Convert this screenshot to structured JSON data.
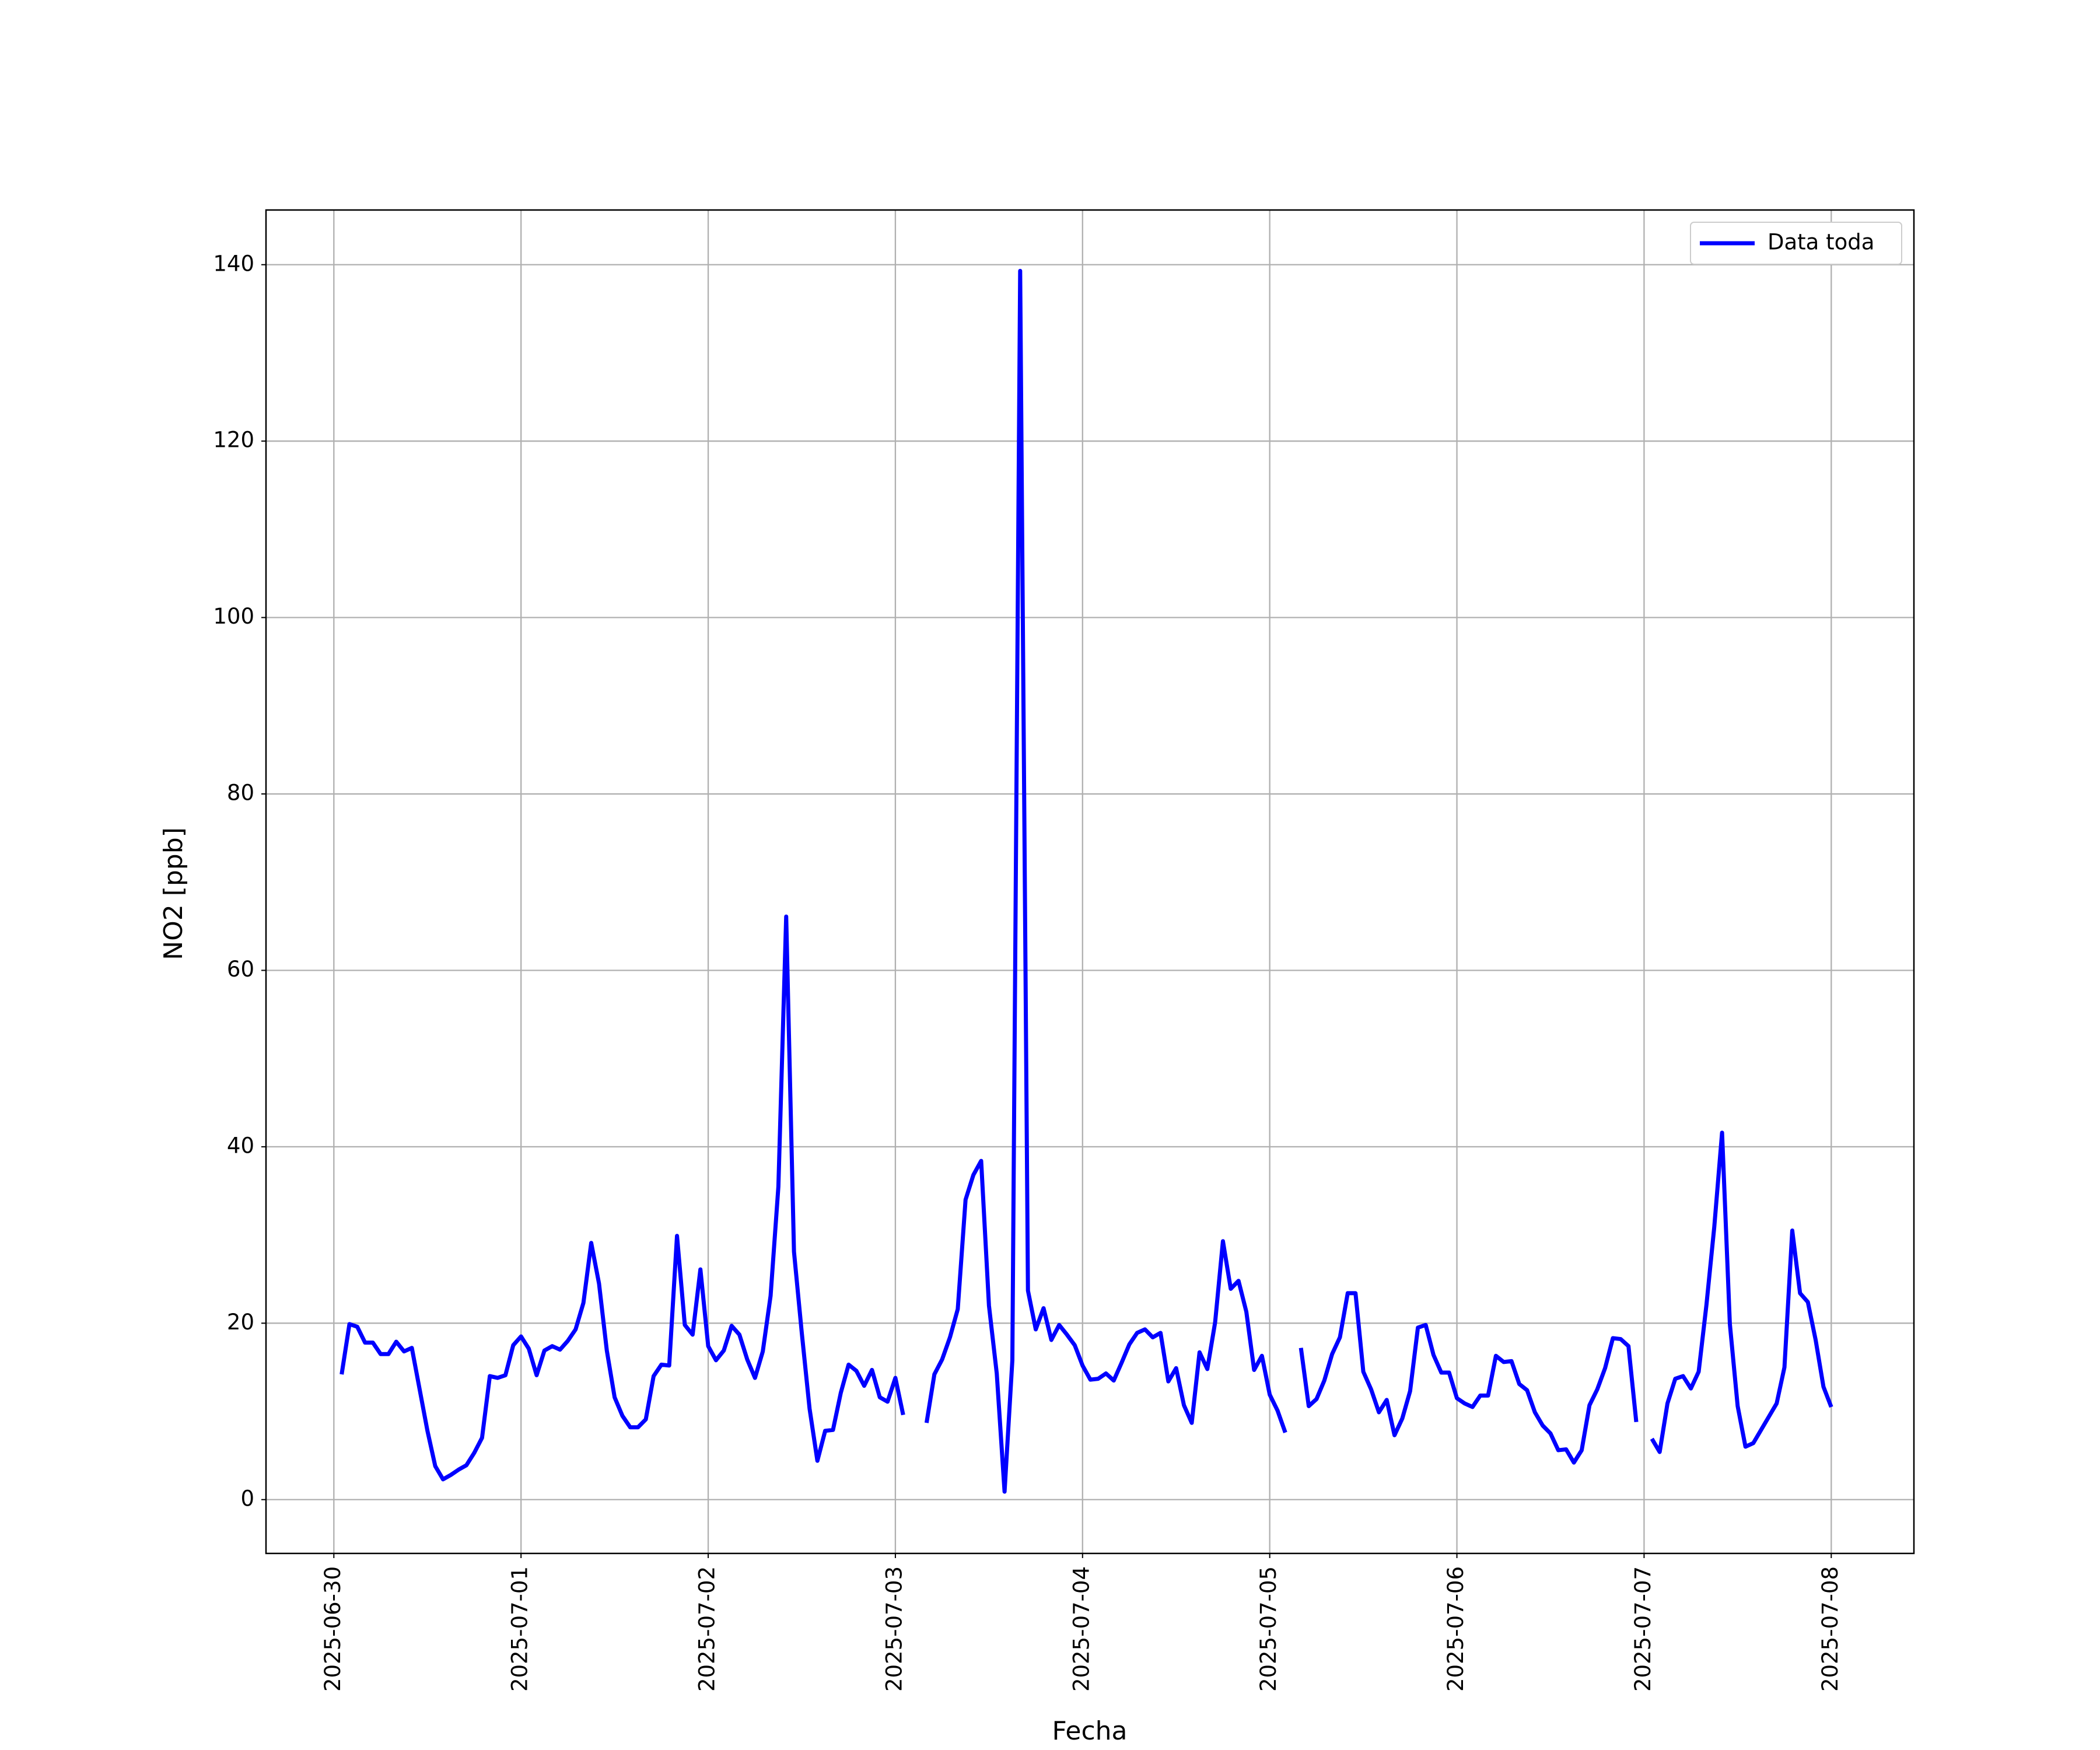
{
  "chart_data": {
    "type": "line",
    "xlabel": "Fecha",
    "ylabel": "NO2 [ppb]",
    "x": [
      1,
      2,
      3,
      4,
      5,
      6,
      7,
      8,
      9,
      10,
      11,
      12,
      13,
      14,
      15,
      16,
      17,
      18,
      19,
      20,
      21,
      22,
      23,
      24,
      25,
      26,
      27,
      28,
      29,
      30,
      31,
      32,
      33,
      34,
      35,
      36,
      37,
      38,
      39,
      40,
      41,
      42,
      43,
      44,
      45,
      46,
      47,
      48,
      49,
      50,
      51,
      52,
      53,
      54,
      55,
      56,
      57,
      58,
      59,
      60,
      61,
      62,
      63,
      64,
      65,
      66,
      67,
      68,
      69,
      70,
      71,
      72,
      73,
      74,
      75,
      76,
      77,
      78,
      79,
      80,
      81,
      82,
      83,
      84,
      85,
      86,
      87,
      88,
      89,
      90,
      91,
      92,
      93,
      94,
      95,
      96,
      97,
      98,
      99,
      100,
      101,
      102,
      103,
      104,
      105,
      106,
      107,
      108,
      109,
      110,
      111,
      112,
      113,
      114,
      115,
      116,
      117,
      118,
      119,
      120,
      121,
      122,
      123,
      124,
      125,
      126,
      127,
      128,
      129,
      130,
      131,
      132,
      133,
      134,
      135,
      136,
      137,
      138,
      139,
      140,
      141,
      142,
      143,
      144,
      145,
      146,
      147,
      148,
      149,
      150,
      151,
      152,
      153,
      154,
      155,
      156,
      157,
      158,
      159,
      160,
      161,
      162,
      163,
      164,
      165,
      166,
      167,
      168,
      169,
      170,
      171,
      172,
      173,
      174,
      175,
      176,
      177,
      178,
      179,
      180,
      181,
      182,
      183,
      184,
      185,
      186,
      187,
      188,
      189,
      190,
      191,
      192
    ],
    "series": [
      {
        "name": "Data toda",
        "color": "#0000ff",
        "values": [
          14.2,
          19.9,
          19.6,
          17.8,
          17.8,
          16.5,
          16.5,
          17.9,
          16.8,
          17.2,
          12.5,
          7.8,
          3.8,
          2.3,
          2.8,
          3.4,
          3.9,
          5.3,
          7.0,
          14.0,
          13.8,
          14.1,
          17.5,
          18.5,
          17.1,
          14.1,
          16.9,
          17.4,
          17.0,
          18.0,
          19.3,
          22.3,
          29.1,
          24.5,
          16.9,
          11.6,
          9.5,
          8.2,
          8.2,
          9.1,
          14.0,
          15.3,
          15.2,
          29.9,
          19.8,
          18.7,
          26.1,
          17.4,
          15.8,
          16.9,
          19.7,
          18.7,
          15.9,
          13.8,
          16.8,
          23.1,
          35.5,
          66.1,
          28.1,
          18.9,
          10.3,
          4.4,
          7.8,
          7.9,
          12.1,
          15.3,
          14.6,
          12.9,
          14.7,
          11.6,
          11.1,
          13.8,
          9.6,
          null,
          null,
          8.7,
          14.2,
          15.9,
          18.4,
          21.6,
          34.0,
          36.8,
          38.4,
          22.0,
          14.3,
          0.9,
          15.8,
          139.3,
          23.7,
          19.3,
          21.7,
          18.1,
          19.8,
          18.7,
          17.5,
          15.2,
          13.6,
          13.7,
          14.3,
          13.5,
          15.5,
          17.6,
          18.9,
          19.3,
          18.4,
          18.9,
          13.4,
          14.9,
          10.7,
          8.7,
          16.7,
          14.8,
          20.1,
          29.3,
          23.9,
          24.8,
          21.3,
          14.7,
          16.3,
          11.9,
          10.1,
          7.6,
          null,
          17.2,
          10.6,
          11.4,
          13.5,
          16.5,
          18.4,
          23.4,
          23.4,
          14.5,
          12.5,
          9.9,
          11.3,
          7.3,
          9.2,
          12.3,
          19.5,
          19.8,
          16.4,
          14.4,
          14.4,
          11.5,
          10.9,
          10.5,
          11.8,
          11.8,
          16.3,
          15.6,
          15.7,
          13.1,
          12.4,
          9.9,
          8.4,
          7.5,
          5.6,
          5.7,
          4.2,
          5.6,
          10.7,
          12.5,
          14.9,
          18.3,
          18.2,
          17.4,
          8.8,
          null,
          6.9,
          5.4,
          10.9,
          13.7,
          14.0,
          12.6,
          14.5,
          22.1,
          30.9,
          41.6,
          19.9,
          10.6,
          6.0,
          6.4,
          7.9,
          9.4,
          10.9,
          15.0,
          30.5,
          23.4,
          22.4,
          18.1,
          12.8,
          10.5
        ]
      }
    ],
    "xlim": [
      -8.7,
      202.6
    ],
    "xticks": [
      {
        "value": 0,
        "label": "2025-06-30"
      },
      {
        "value": 24,
        "label": "2025-07-01"
      },
      {
        "value": 48,
        "label": "2025-07-02"
      },
      {
        "value": 72,
        "label": "2025-07-03"
      },
      {
        "value": 96,
        "label": "2025-07-04"
      },
      {
        "value": 120,
        "label": "2025-07-05"
      },
      {
        "value": 144,
        "label": "2025-07-06"
      },
      {
        "value": 168,
        "label": "2025-07-07"
      },
      {
        "value": 192,
        "label": "2025-07-08"
      }
    ],
    "ylim": [
      -6.1,
      146.2
    ],
    "yticks": [
      0,
      20,
      40,
      60,
      80,
      100,
      120,
      140
    ],
    "grid": true,
    "legend": "upper right"
  }
}
